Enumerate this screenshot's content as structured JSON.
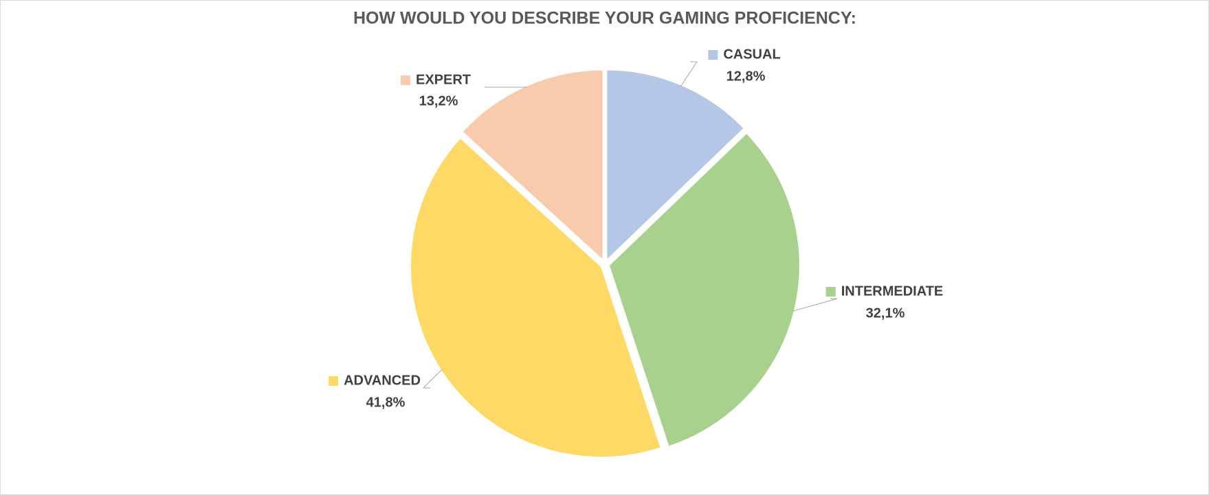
{
  "chart_data": {
    "type": "pie",
    "title": "HOW WOULD YOU DESCRIBE YOUR GAMING PROFICIENCY:",
    "categories": [
      "CASUAL",
      "INTERMEDIATE",
      "ADVANCED",
      "EXPERT"
    ],
    "values": [
      12.8,
      32.1,
      41.8,
      13.2
    ],
    "value_labels": [
      "12,8%",
      "32,1%",
      "41,8%",
      "13,2%"
    ],
    "colors": [
      "#b4c7e7",
      "#a9d18e",
      "#ffd966",
      "#f8cbad"
    ]
  }
}
